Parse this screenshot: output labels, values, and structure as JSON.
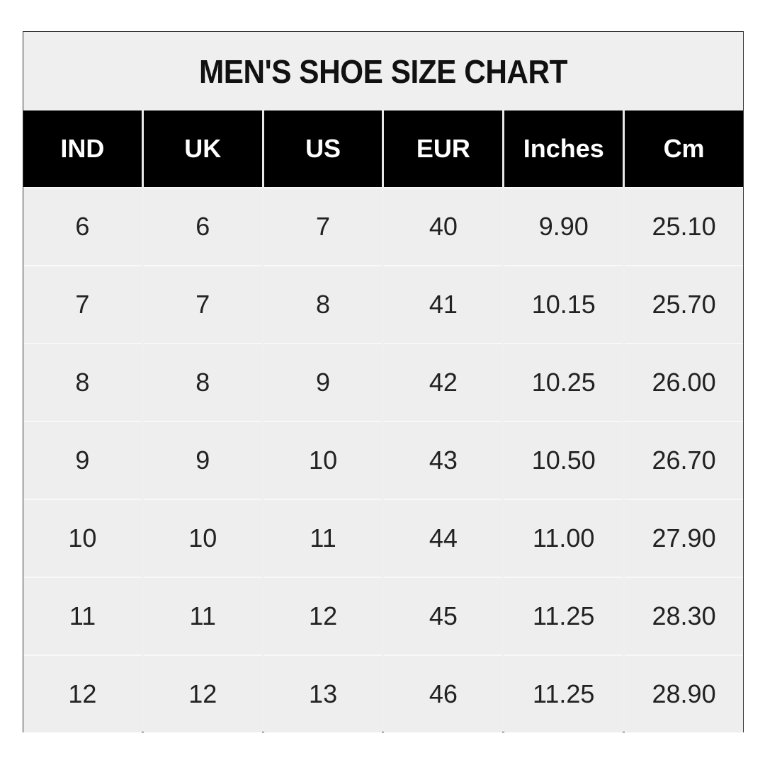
{
  "chart_data": {
    "type": "table",
    "title": "MEN'S SHOE SIZE CHART",
    "columns": [
      "IND",
      "UK",
      "US",
      "EUR",
      "Inches",
      "Cm"
    ],
    "rows": [
      [
        "6",
        "6",
        "7",
        "40",
        "9.90",
        "25.10"
      ],
      [
        "7",
        "7",
        "8",
        "41",
        "10.15",
        "25.70"
      ],
      [
        "8",
        "8",
        "9",
        "42",
        "10.25",
        "26.00"
      ],
      [
        "9",
        "9",
        "10",
        "43",
        "10.50",
        "26.70"
      ],
      [
        "10",
        "10",
        "11",
        "44",
        "11.00",
        "27.90"
      ],
      [
        "11",
        "11",
        "12",
        "45",
        "11.25",
        "28.30"
      ],
      [
        "12",
        "12",
        "13",
        "46",
        "11.25",
        "28.90"
      ]
    ],
    "colors": {
      "header_bg": "#000000",
      "header_text": "#ffffff",
      "cell_bg": "#eeeeee",
      "text": "#222222"
    }
  }
}
